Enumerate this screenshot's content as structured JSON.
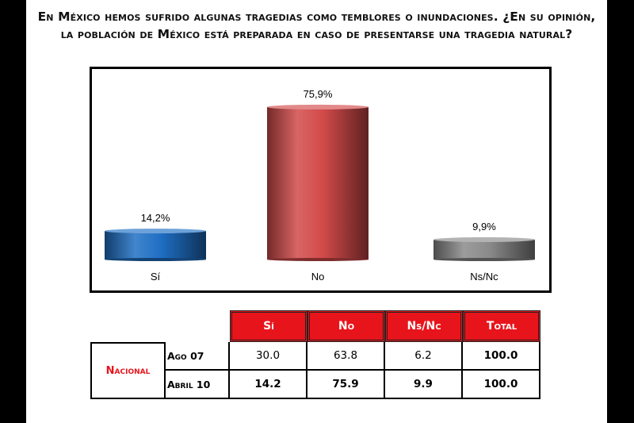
{
  "title": {
    "line1": "En México hemos sufrido algunas tragedias como temblores o inundaciones. ¿En su opinión,",
    "line2": "la población de México está preparada en caso de presentarse una tragedia natural?"
  },
  "chart_data": {
    "type": "bar",
    "categories": [
      "Sí",
      "No",
      "Ns/Nc"
    ],
    "values": [
      14.2,
      75.9,
      9.9
    ],
    "data_labels": [
      "14,2%",
      "75,9%",
      "9,9%"
    ],
    "colors": [
      "#1f6fc4",
      "#d24a4a",
      "#8a8a8a"
    ],
    "ylim": [
      0,
      100
    ],
    "grid": false,
    "style": "3d-cylinder"
  },
  "table": {
    "headers": [
      "Sí",
      "No",
      "Ns/Nc",
      "Total"
    ],
    "group_label": "Nacional",
    "rows": [
      {
        "label": "Ago 07",
        "values": [
          "30.0",
          "63.8",
          "6.2",
          "100.0"
        ]
      },
      {
        "label": "Abril 10",
        "values": [
          "14.2",
          "75.9",
          "9.9",
          "100.0"
        ]
      }
    ],
    "header_color": "#e8141b"
  }
}
